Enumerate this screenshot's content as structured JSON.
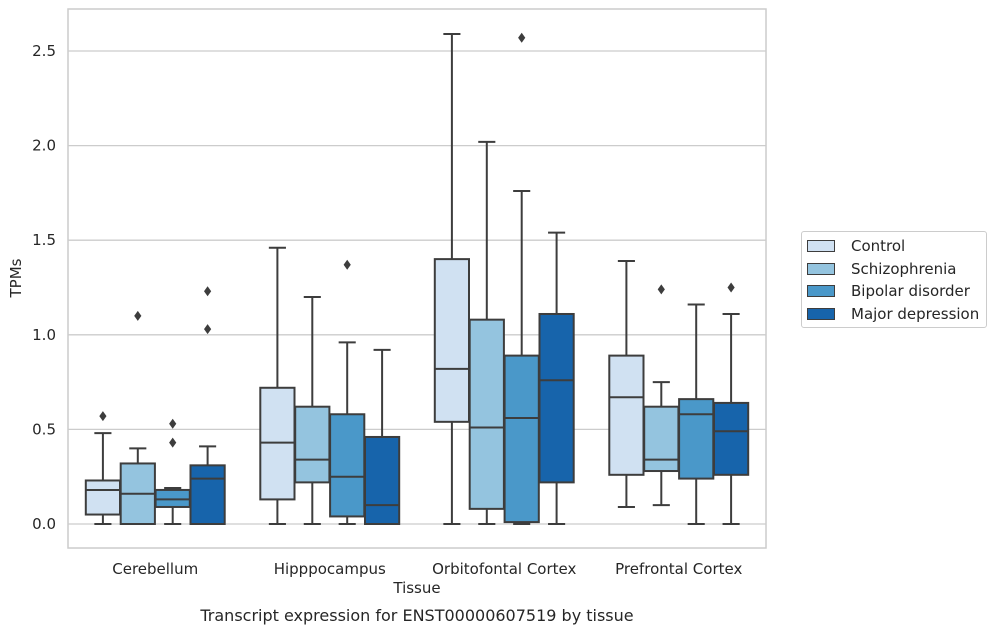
{
  "chart_data": {
    "type": "boxplot",
    "title": "",
    "caption": "Transcript expression for ENST00000607519 by tissue",
    "xlabel": "Tissue",
    "ylabel": "TPMs",
    "ylim": [
      -0.125,
      2.72
    ],
    "yticks": [
      0.0,
      0.5,
      1.0,
      1.5,
      2.0,
      2.5
    ],
    "ytick_labels": [
      "0.0",
      "0.5",
      "1.0",
      "1.5",
      "2.0",
      "2.5"
    ],
    "grid": "horizontal",
    "legend_position": "right",
    "categories": [
      "Cerebellum",
      "Hipppocampus",
      "Orbitofontal Cortex",
      "Prefrontal Cortex"
    ],
    "series": [
      {
        "name": "Control",
        "color": "#d0e1f2",
        "boxes": [
          {
            "whislo": 0.0,
            "q1": 0.05,
            "med": 0.18,
            "q3": 0.23,
            "whishi": 0.48,
            "fliers": [
              0.57
            ]
          },
          {
            "whislo": 0.0,
            "q1": 0.13,
            "med": 0.43,
            "q3": 0.72,
            "whishi": 1.46,
            "fliers": []
          },
          {
            "whislo": 0.0,
            "q1": 0.54,
            "med": 0.82,
            "q3": 1.4,
            "whishi": 2.59,
            "fliers": []
          },
          {
            "whislo": 0.09,
            "q1": 0.26,
            "med": 0.67,
            "q3": 0.89,
            "whishi": 1.39,
            "fliers": []
          }
        ]
      },
      {
        "name": "Schizophrenia",
        "color": "#94c4df",
        "boxes": [
          {
            "whislo": 0.0,
            "q1": 0.0,
            "med": 0.16,
            "q3": 0.32,
            "whishi": 0.4,
            "fliers": [
              1.1
            ]
          },
          {
            "whislo": 0.0,
            "q1": 0.22,
            "med": 0.34,
            "q3": 0.62,
            "whishi": 1.2,
            "fliers": []
          },
          {
            "whislo": 0.0,
            "q1": 0.08,
            "med": 0.51,
            "q3": 1.08,
            "whishi": 2.02,
            "fliers": []
          },
          {
            "whislo": 0.1,
            "q1": 0.28,
            "med": 0.34,
            "q3": 0.62,
            "whishi": 0.75,
            "fliers": [
              1.24
            ]
          }
        ]
      },
      {
        "name": "Bipolar disorder",
        "color": "#4a98c9",
        "boxes": [
          {
            "whislo": 0.0,
            "q1": 0.09,
            "med": 0.13,
            "q3": 0.18,
            "whishi": 0.19,
            "fliers": [
              0.53,
              0.43
            ]
          },
          {
            "whislo": 0.0,
            "q1": 0.04,
            "med": 0.25,
            "q3": 0.58,
            "whishi": 0.96,
            "fliers": [
              1.37
            ]
          },
          {
            "whislo": 0.0,
            "q1": 0.01,
            "med": 0.56,
            "q3": 0.89,
            "whishi": 1.76,
            "fliers": [
              2.57
            ]
          },
          {
            "whislo": 0.0,
            "q1": 0.24,
            "med": 0.58,
            "q3": 0.66,
            "whishi": 1.16,
            "fliers": []
          }
        ]
      },
      {
        "name": "Major depression",
        "color": "#1764ab",
        "boxes": [
          {
            "whislo": 0.0,
            "q1": 0.0,
            "med": 0.24,
            "q3": 0.31,
            "whishi": 0.41,
            "fliers": [
              1.23,
              1.03
            ]
          },
          {
            "whislo": 0.0,
            "q1": 0.0,
            "med": 0.1,
            "q3": 0.46,
            "whishi": 0.92,
            "fliers": []
          },
          {
            "whislo": 0.0,
            "q1": 0.22,
            "med": 0.76,
            "q3": 1.11,
            "whishi": 1.54,
            "fliers": []
          },
          {
            "whislo": 0.0,
            "q1": 0.26,
            "med": 0.49,
            "q3": 0.64,
            "whishi": 1.11,
            "fliers": [
              1.25
            ]
          }
        ]
      }
    ]
  }
}
